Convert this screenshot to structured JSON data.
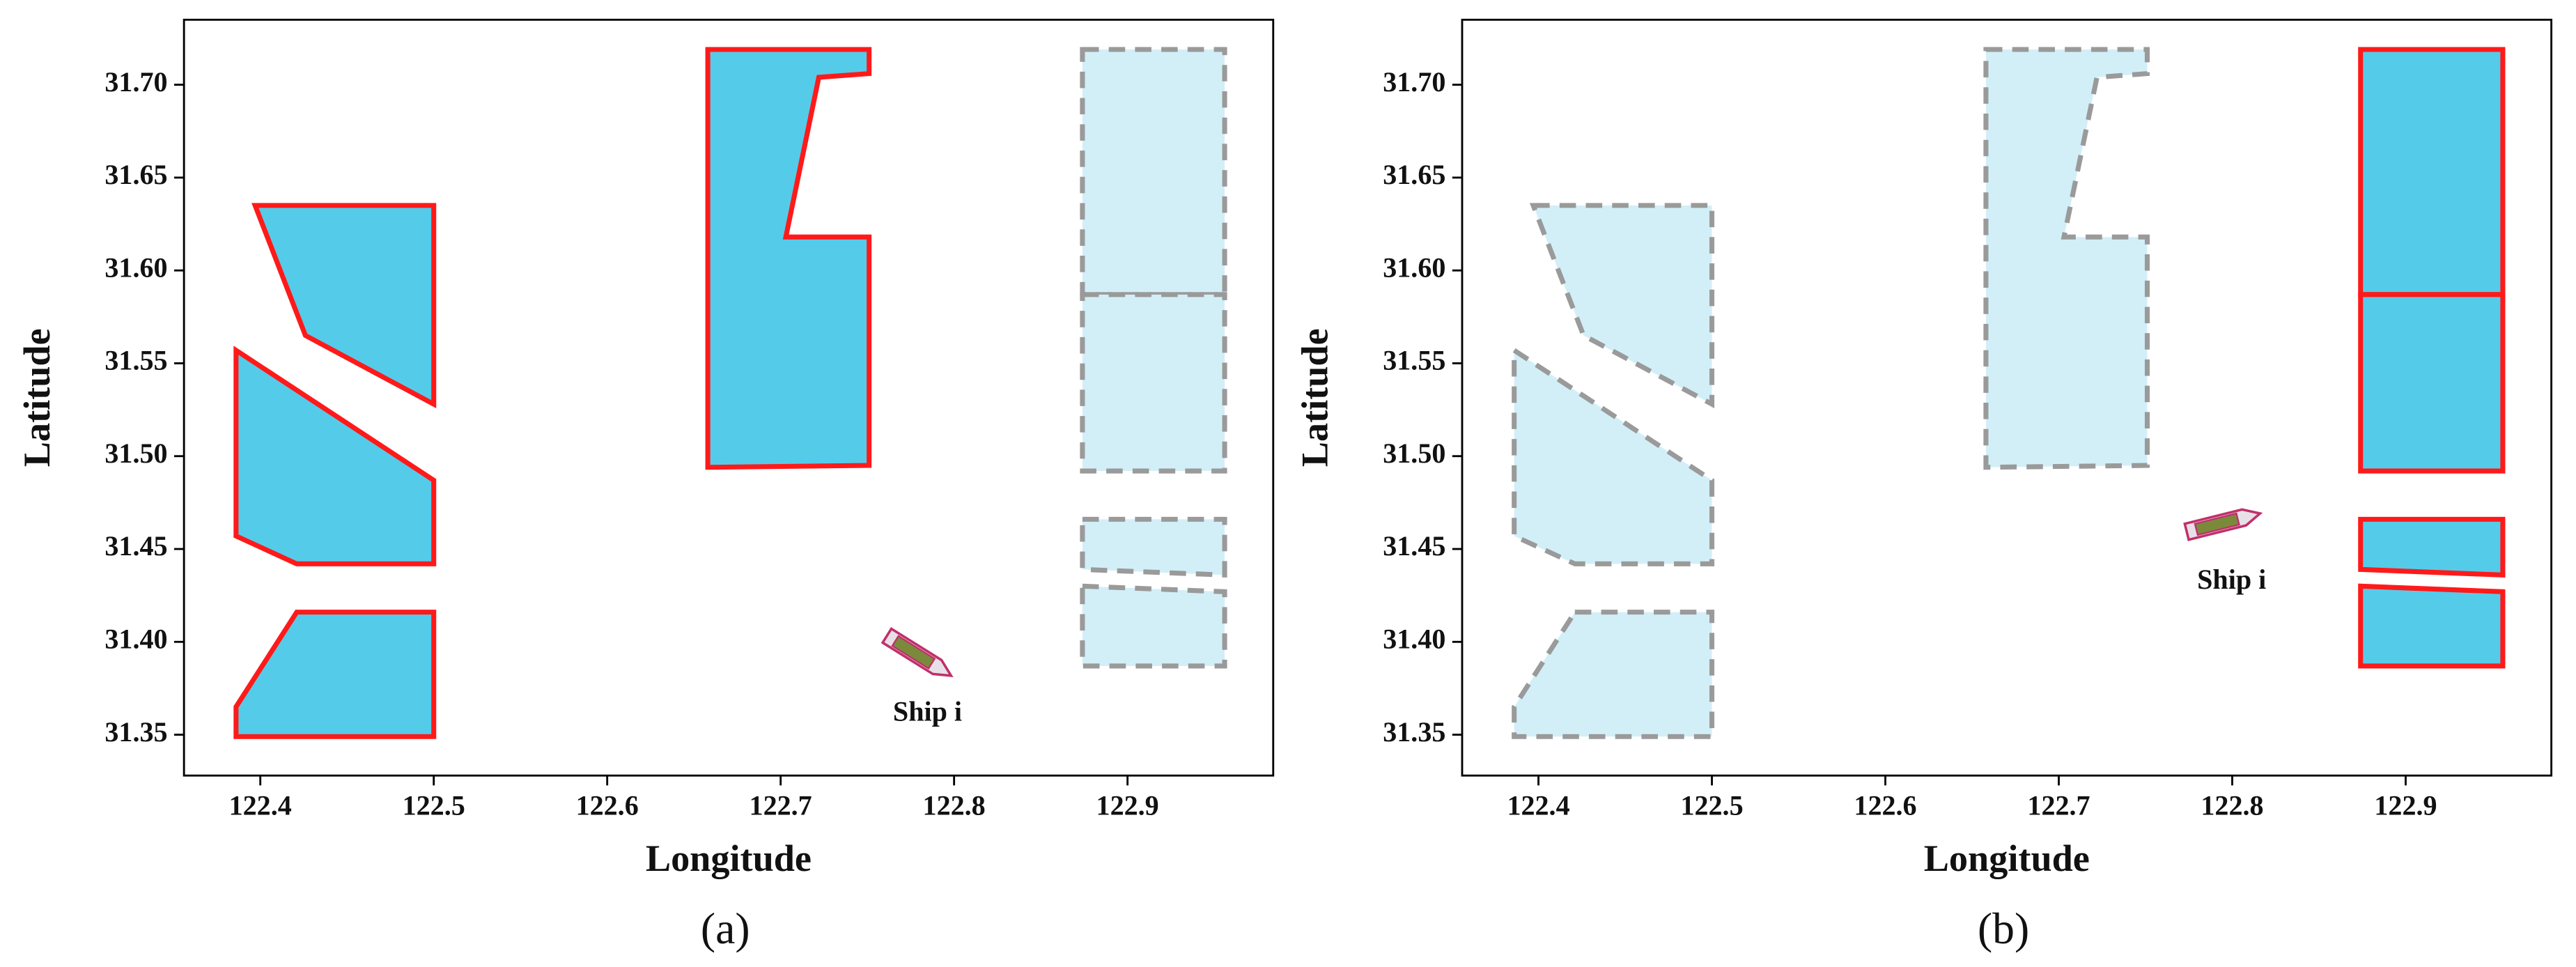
{
  "chart_data": [
    {
      "type": "polygon",
      "caption": "(a)",
      "xlabel": "Longitude",
      "ylabel": "Latitude",
      "xlim": [
        122.356,
        122.984
      ],
      "ylim": [
        31.328,
        31.735
      ],
      "xticks": [
        122.4,
        122.5,
        122.6,
        122.7,
        122.8,
        122.9
      ],
      "yticks": [
        31.35,
        {
          "value": 31.4,
          "label": "31.40"
        },
        31.45,
        {
          "value": 31.5,
          "label": "31.50"
        },
        31.55,
        {
          "value": 31.6,
          "label": "31.60"
        },
        31.65,
        {
          "value": 31.7,
          "label": "31.70"
        }
      ],
      "colors": {
        "highlighted_fill": "#55cbea",
        "highlighted_edge": "#ff1a1a",
        "other_fill": "#d2eff8",
        "other_edge": "#9a9a9a"
      },
      "regions": [
        {
          "x": [
            122.397,
            122.5,
            122.5,
            122.426
          ],
          "y": [
            31.635,
            31.635,
            31.528,
            31.565
          ],
          "highlighted": true
        },
        {
          "x": [
            122.386,
            122.5,
            122.5,
            122.421,
            122.386
          ],
          "y": [
            31.557,
            31.487,
            31.442,
            31.442,
            31.457
          ],
          "highlighted": true
        },
        {
          "x": [
            122.421,
            122.5,
            122.5,
            122.386,
            122.386
          ],
          "y": [
            31.416,
            31.416,
            31.349,
            31.349,
            31.365
          ],
          "highlighted": true
        },
        {
          "x": [
            122.658,
            122.751,
            122.751,
            122.722,
            122.703,
            122.751,
            122.751,
            122.658
          ],
          "y": [
            31.719,
            31.719,
            31.706,
            31.704,
            31.618,
            31.618,
            31.495,
            31.494
          ],
          "highlighted": true
        },
        {
          "x": [
            122.874,
            122.956,
            122.956,
            122.874
          ],
          "y": [
            31.719,
            31.719,
            31.587,
            31.587
          ],
          "highlighted": false
        },
        {
          "x": [
            122.874,
            122.956,
            122.956,
            122.874
          ],
          "y": [
            31.587,
            31.587,
            31.492,
            31.492
          ],
          "highlighted": false
        },
        {
          "x": [
            122.874,
            122.956,
            122.956,
            122.874
          ],
          "y": [
            31.466,
            31.466,
            31.436,
            31.439
          ],
          "highlighted": false
        },
        {
          "x": [
            122.874,
            122.956,
            122.956,
            122.874
          ],
          "y": [
            31.43,
            31.427,
            31.387,
            31.387
          ],
          "highlighted": false
        }
      ],
      "ship": {
        "label": "Ship i",
        "x": 122.779,
        "y": 31.393
      }
    },
    {
      "type": "polygon",
      "caption": "(b)",
      "xlabel": "Longitude",
      "ylabel": "Latitude",
      "xlim": [
        122.356,
        122.984
      ],
      "ylim": [
        31.328,
        31.735
      ],
      "xticks": [
        122.4,
        122.5,
        122.6,
        122.7,
        122.8,
        122.9
      ],
      "yticks": [
        31.35,
        {
          "value": 31.4,
          "label": "31.40"
        },
        31.45,
        {
          "value": 31.5,
          "label": "31.50"
        },
        31.55,
        {
          "value": 31.6,
          "label": "31.60"
        },
        31.65,
        {
          "value": 31.7,
          "label": "31.70"
        }
      ],
      "colors": {
        "highlighted_fill": "#55cbea",
        "highlighted_edge": "#ff1a1a",
        "other_fill": "#d2eff8",
        "other_edge": "#9a9a9a"
      },
      "regions": [
        {
          "x": [
            122.397,
            122.5,
            122.5,
            122.426
          ],
          "y": [
            31.635,
            31.635,
            31.528,
            31.565
          ],
          "highlighted": false
        },
        {
          "x": [
            122.386,
            122.5,
            122.5,
            122.421,
            122.386
          ],
          "y": [
            31.557,
            31.487,
            31.442,
            31.442,
            31.457
          ],
          "highlighted": false
        },
        {
          "x": [
            122.421,
            122.5,
            122.5,
            122.386,
            122.386
          ],
          "y": [
            31.416,
            31.416,
            31.349,
            31.349,
            31.365
          ],
          "highlighted": false
        },
        {
          "x": [
            122.658,
            122.751,
            122.751,
            122.722,
            122.703,
            122.751,
            122.751,
            122.658
          ],
          "y": [
            31.719,
            31.719,
            31.706,
            31.704,
            31.618,
            31.618,
            31.495,
            31.494
          ],
          "highlighted": false
        },
        {
          "x": [
            122.874,
            122.956,
            122.956,
            122.874
          ],
          "y": [
            31.719,
            31.719,
            31.587,
            31.587
          ],
          "highlighted": true
        },
        {
          "x": [
            122.874,
            122.956,
            122.956,
            122.874
          ],
          "y": [
            31.587,
            31.587,
            31.492,
            31.492
          ],
          "highlighted": true
        },
        {
          "x": [
            122.874,
            122.956,
            122.956,
            122.874
          ],
          "y": [
            31.466,
            31.466,
            31.436,
            31.439
          ],
          "highlighted": true
        },
        {
          "x": [
            122.874,
            122.956,
            122.956,
            122.874
          ],
          "y": [
            31.43,
            31.427,
            31.387,
            31.387
          ],
          "highlighted": true
        }
      ],
      "ship": {
        "label": "Ship i",
        "x": 122.794,
        "y": 31.464
      }
    }
  ]
}
